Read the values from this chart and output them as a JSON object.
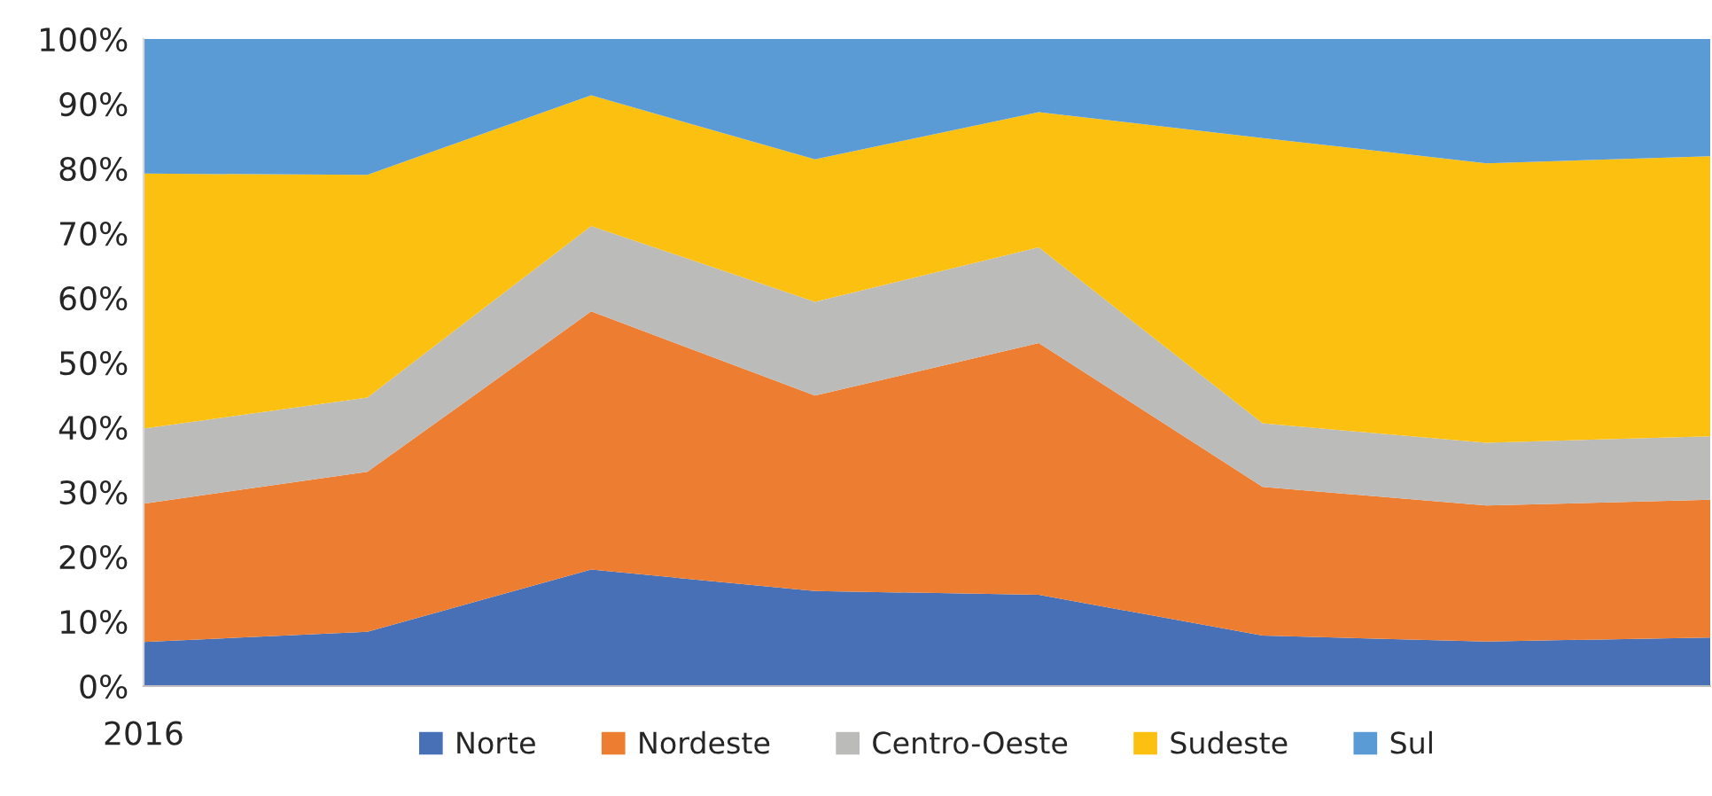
{
  "chart_data": {
    "type": "area",
    "stacked": true,
    "categories": [
      "2016",
      null,
      null,
      null,
      null,
      null,
      null,
      null
    ],
    "series": [
      {
        "name": "Norte",
        "color": "#4770b6",
        "values": [
          6.8,
          8.4,
          18.0,
          14.7,
          14.1,
          7.8,
          6.9,
          7.5
        ]
      },
      {
        "name": "Nordeste",
        "color": "#ed7d31",
        "values": [
          21.4,
          24.7,
          39.9,
          30.2,
          38.9,
          23.0,
          21.0,
          21.3
        ]
      },
      {
        "name": "Centro-Oeste",
        "color": "#bbbbb9",
        "values": [
          11.6,
          11.5,
          13.2,
          14.5,
          14.8,
          9.8,
          9.7,
          9.8
        ]
      },
      {
        "name": "Sudeste",
        "color": "#fcc010",
        "values": [
          39.4,
          34.4,
          20.2,
          22.0,
          20.9,
          44.1,
          43.2,
          43.3
        ]
      },
      {
        "name": "Sul",
        "color": "#5b9bd5",
        "values": [
          20.8,
          21.0,
          8.7,
          18.6,
          11.3,
          15.3,
          19.2,
          18.1
        ]
      }
    ],
    "ylim": [
      0,
      100
    ],
    "yticks": [
      {
        "value": 0,
        "label": "0%"
      },
      {
        "value": 10,
        "label": "10%"
      },
      {
        "value": 20,
        "label": "20%"
      },
      {
        "value": 30,
        "label": "30%"
      },
      {
        "value": 40,
        "label": "40%"
      },
      {
        "value": 50,
        "label": "50%"
      },
      {
        "value": 60,
        "label": "60%"
      },
      {
        "value": 70,
        "label": "70%"
      },
      {
        "value": 80,
        "label": "80%"
      },
      {
        "value": 90,
        "label": "90%"
      },
      {
        "value": 100,
        "label": "100%"
      }
    ],
    "grid": false,
    "legend": "bottom"
  }
}
